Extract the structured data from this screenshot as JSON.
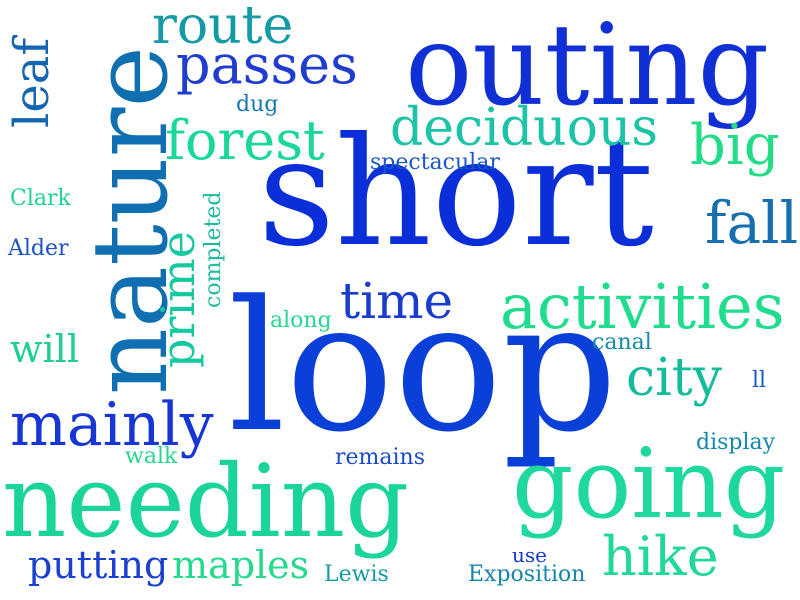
{
  "words": [
    {
      "text": "short",
      "color": "#0a2fd8"
    },
    {
      "text": "loop",
      "color": "#0a3fd8"
    },
    {
      "text": "outing",
      "color": "#1030d6"
    },
    {
      "text": "nature",
      "color": "#0f6fb0"
    },
    {
      "text": "needing",
      "color": "#1ad49a"
    },
    {
      "text": "going",
      "color": "#1ed8a0"
    },
    {
      "text": "activities",
      "color": "#20dc8e"
    },
    {
      "text": "deciduous",
      "color": "#1cc3a6"
    },
    {
      "text": "forest",
      "color": "#18d79a"
    },
    {
      "text": "passes",
      "color": "#1f3dcf"
    },
    {
      "text": "route",
      "color": "#139aa6"
    },
    {
      "text": "time",
      "color": "#1a3ccc"
    },
    {
      "text": "mainly",
      "color": "#1836d2"
    },
    {
      "text": "city",
      "color": "#14bb9c"
    },
    {
      "text": "prime",
      "color": "#14c8a0"
    },
    {
      "text": "fall",
      "color": "#156fb0"
    },
    {
      "text": "big",
      "color": "#22dc88"
    },
    {
      "text": "hike",
      "color": "#22d896"
    },
    {
      "text": "leaf",
      "color": "#1466b3"
    },
    {
      "text": "will",
      "color": "#1fcf92"
    },
    {
      "text": "maples",
      "color": "#24da8c"
    },
    {
      "text": "putting",
      "color": "#1940d1"
    },
    {
      "text": "spectacular",
      "color": "#1a58c6"
    },
    {
      "text": "completed",
      "color": "#1bbba0"
    },
    {
      "text": "canal",
      "color": "#158aa8"
    },
    {
      "text": "display",
      "color": "#1587aa"
    },
    {
      "text": "remains",
      "color": "#1b4bcd"
    },
    {
      "text": "walk",
      "color": "#28d88a"
    },
    {
      "text": "along",
      "color": "#24d792"
    },
    {
      "text": "Clark",
      "color": "#1bd496"
    },
    {
      "text": "Alder",
      "color": "#1a53c8"
    },
    {
      "text": "Lewis",
      "color": "#169aa4"
    },
    {
      "text": "use",
      "color": "#1538d0"
    },
    {
      "text": "Exposition",
      "color": "#1685aa"
    },
    {
      "text": "dug",
      "color": "#1778b0"
    },
    {
      "text": "ll",
      "color": "#1a5ac8"
    }
  ]
}
